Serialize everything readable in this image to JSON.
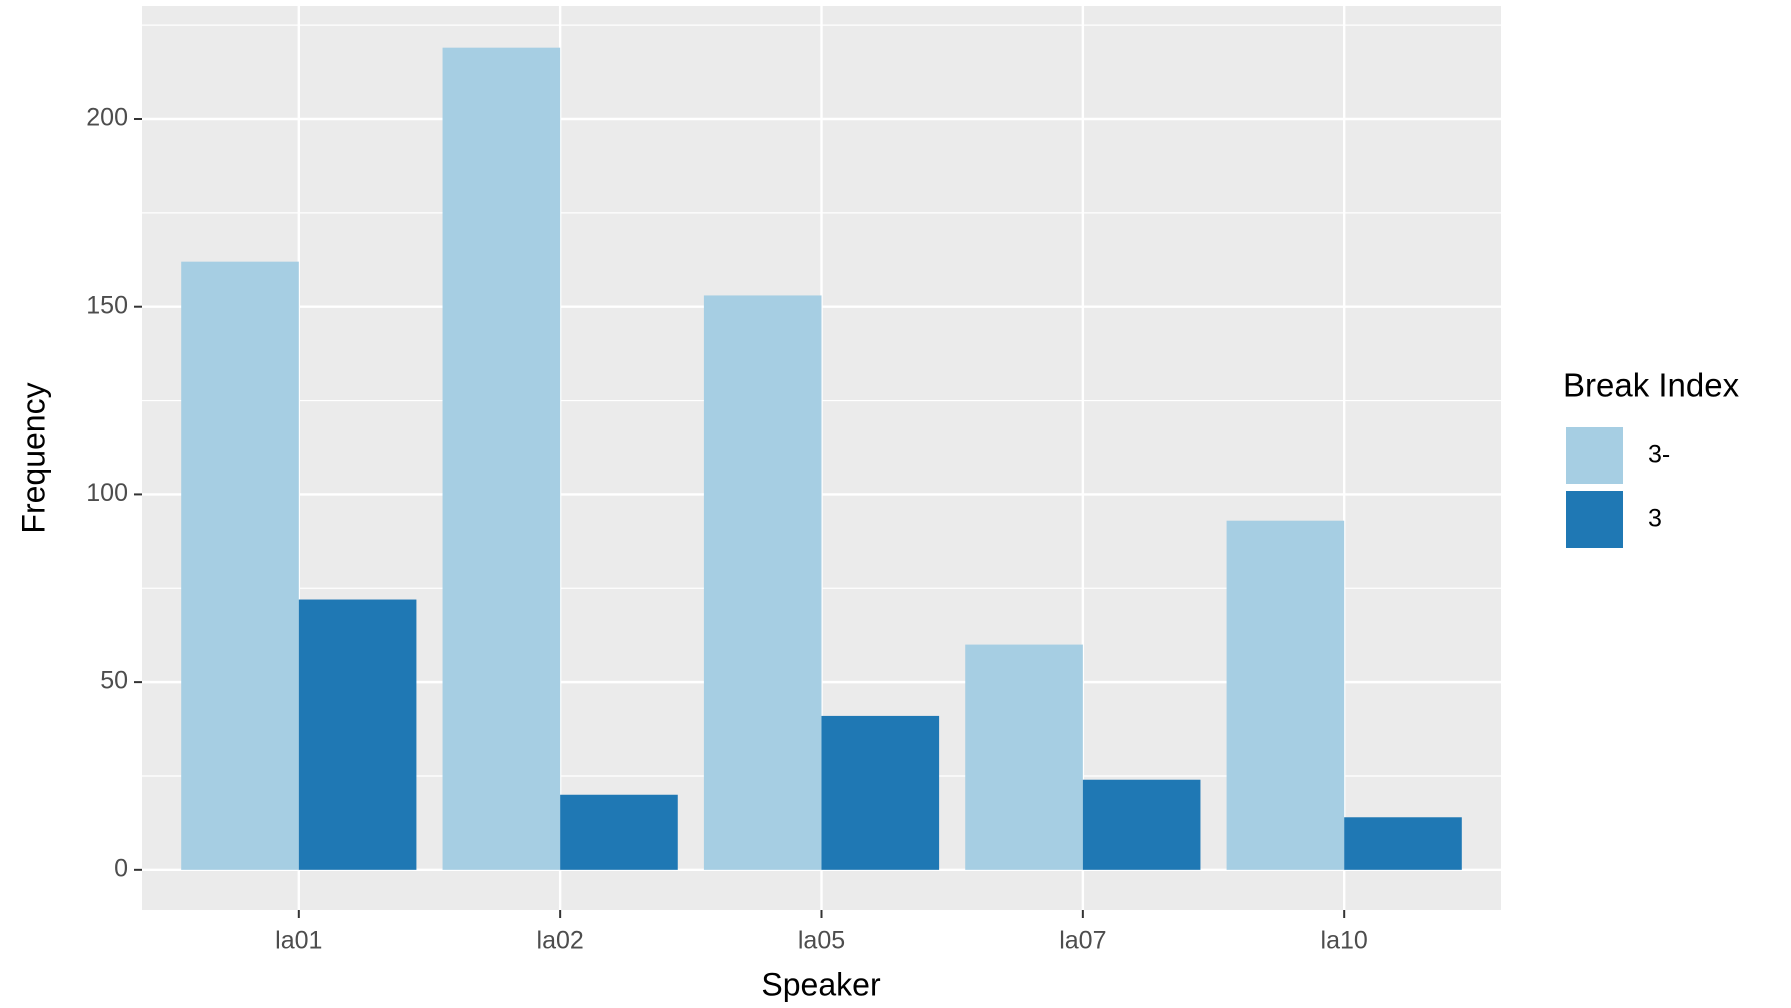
{
  "chart_data": {
    "type": "bar",
    "x_label": "Speaker",
    "y_label": "Frequency",
    "categories": [
      "la01",
      "la02",
      "la05",
      "la07",
      "la10"
    ],
    "series": [
      {
        "name": "3-",
        "color": "#a6cee3",
        "values": [
          162,
          219,
          153,
          60,
          93
        ]
      },
      {
        "name": "3",
        "color": "#1f78b4",
        "values": [
          72,
          20,
          41,
          24,
          14
        ]
      }
    ],
    "legend_title": "Break Index",
    "legend_position": "right",
    "ylim": [
      -10.7,
      230.1
    ],
    "yticks": [
      0,
      50,
      100,
      150,
      200
    ],
    "grid": true
  }
}
